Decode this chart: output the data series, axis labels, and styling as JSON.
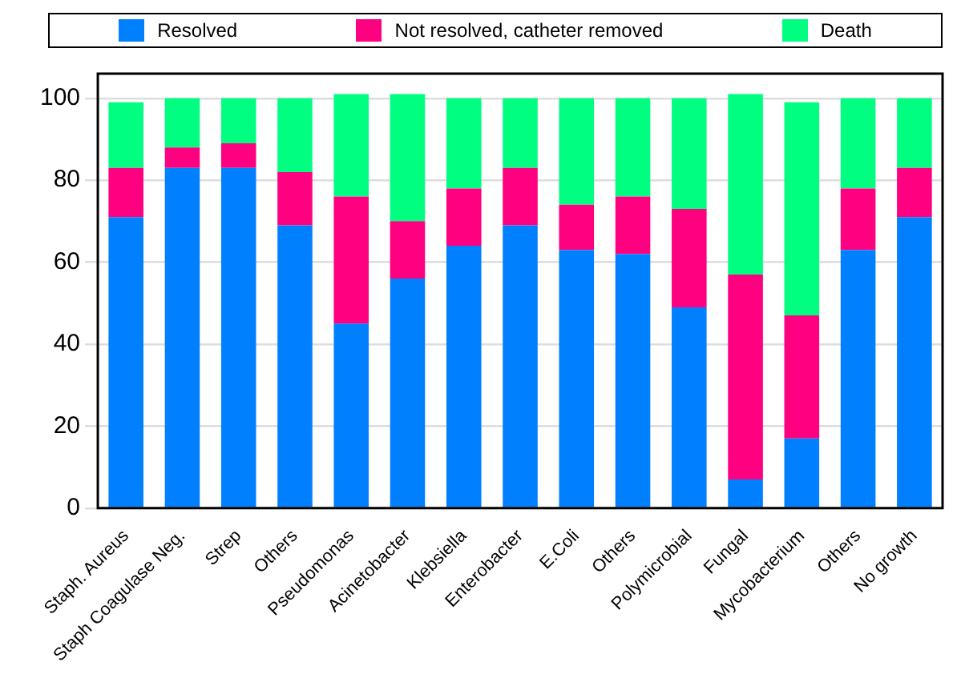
{
  "chart_data": {
    "type": "bar",
    "stacked": true,
    "categories": [
      "Staph. Aureus",
      "Staph Coagulase Neg.",
      "Strep",
      "Others",
      "Pseudomonas",
      "Acinetobacter",
      "Klebsiella",
      "Enterobacter",
      "E.Coli",
      "Others",
      "Polymicrobial",
      "Fungal",
      "Mycobacterium",
      "Others",
      "No growth"
    ],
    "series": [
      {
        "name": "Resolved",
        "color": "#0080ff",
        "values": [
          71,
          83,
          83,
          69,
          45,
          56,
          64,
          69,
          63,
          62,
          49,
          7,
          17,
          63,
          71
        ]
      },
      {
        "name": "Not resolved, catheter removed",
        "color": "#ff0080",
        "values": [
          12,
          5,
          6,
          13,
          31,
          14,
          14,
          14,
          11,
          14,
          24,
          50,
          30,
          15,
          12
        ]
      },
      {
        "name": "Death",
        "color": "#00ff80",
        "values": [
          16,
          12,
          11,
          18,
          25,
          31,
          22,
          17,
          26,
          24,
          27,
          44,
          52,
          22,
          17
        ]
      }
    ],
    "ylim": [
      0,
      106
    ],
    "yticks": [
      0,
      20,
      40,
      60,
      80,
      100
    ],
    "grid": "y",
    "legend": "top"
  }
}
